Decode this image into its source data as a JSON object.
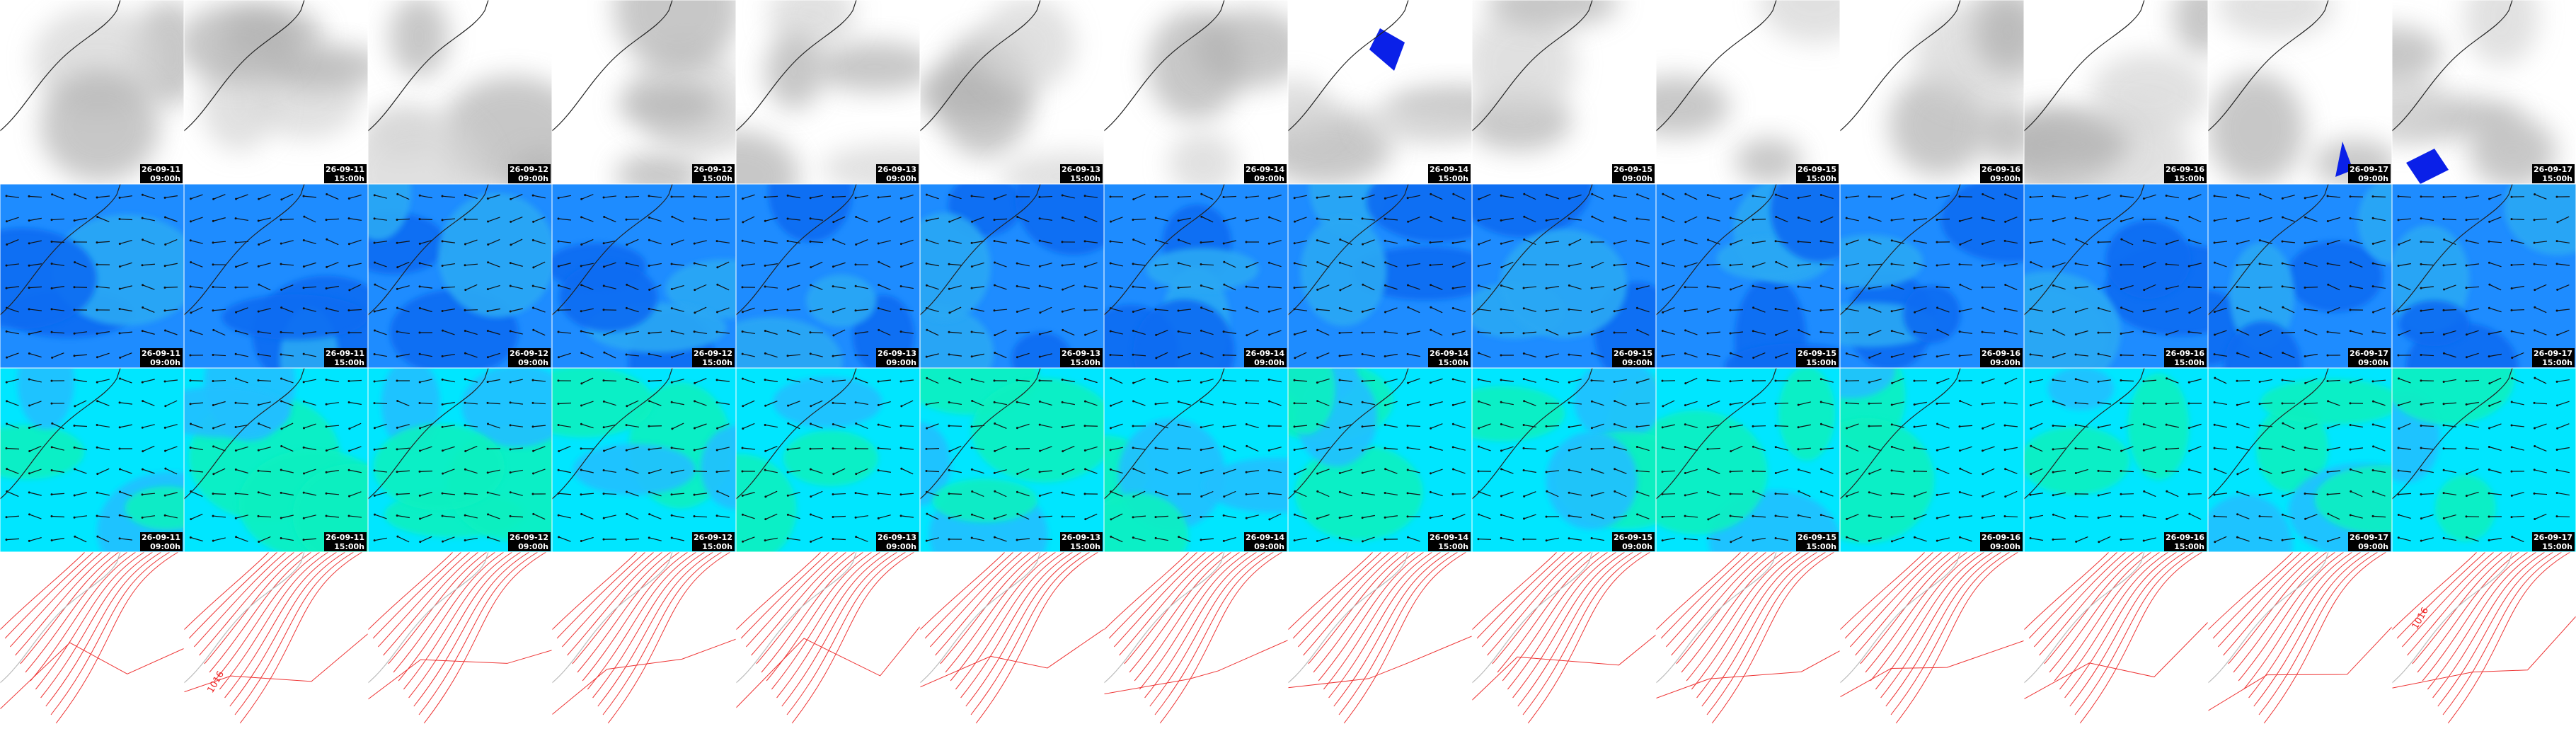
{
  "columns": [
    {
      "date": "26-09-11",
      "time": "09:00h"
    },
    {
      "date": "26-09-11",
      "time": "15:00h"
    },
    {
      "date": "26-09-12",
      "time": "09:00h"
    },
    {
      "date": "26-09-12",
      "time": "15:00h"
    },
    {
      "date": "26-09-13",
      "time": "09:00h"
    },
    {
      "date": "26-09-13",
      "time": "15:00h"
    },
    {
      "date": "26-09-14",
      "time": "09:00h"
    },
    {
      "date": "26-09-14",
      "time": "15:00h"
    },
    {
      "date": "26-09-15",
      "time": "09:00h"
    },
    {
      "date": "26-09-15",
      "time": "15:00h"
    },
    {
      "date": "26-09-16",
      "time": "09:00h"
    },
    {
      "date": "26-09-16",
      "time": "15:00h"
    },
    {
      "date": "26-09-17",
      "time": "09:00h"
    },
    {
      "date": "26-09-17",
      "time": "15:00h"
    }
  ],
  "pressure_labels": [
    "1016",
    "1016"
  ]
}
